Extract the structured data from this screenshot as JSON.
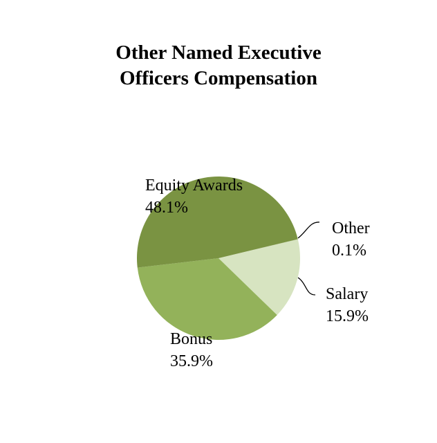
{
  "chart_data": {
    "type": "pie",
    "title": [
      "Other Named Executive",
      "Officers Compensation"
    ],
    "slices": [
      {
        "name": "Equity Awards",
        "value": 48.1,
        "label": "48.1%",
        "color": "#7a9342"
      },
      {
        "name": "Other",
        "value": 0.1,
        "label": "0.1%",
        "color": "#c4d3a6"
      },
      {
        "name": "Salary",
        "value": 15.9,
        "label": "15.9%",
        "color": "#d7e4c1"
      },
      {
        "name": "Bonus",
        "value": 35.9,
        "label": "35.9%",
        "color": "#93b25a"
      }
    ],
    "legend": "none",
    "labels": "outside with leader lines"
  }
}
